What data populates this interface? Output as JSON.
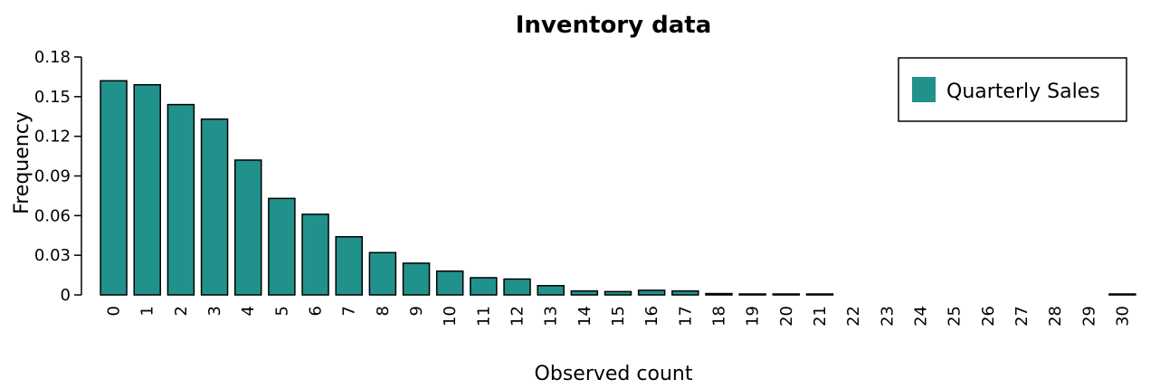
{
  "chart_data": {
    "type": "bar",
    "title": "Inventory data",
    "xlabel": "Observed count",
    "ylabel": "Frequency",
    "categories": [
      "0",
      "1",
      "2",
      "3",
      "4",
      "5",
      "6",
      "7",
      "8",
      "9",
      "10",
      "11",
      "12",
      "13",
      "14",
      "15",
      "16",
      "17",
      "18",
      "19",
      "20",
      "21",
      "22",
      "23",
      "24",
      "25",
      "26",
      "27",
      "28",
      "29",
      "30"
    ],
    "series": [
      {
        "name": "Quarterly Sales",
        "values": [
          0.162,
          0.159,
          0.144,
          0.133,
          0.102,
          0.073,
          0.061,
          0.044,
          0.032,
          0.024,
          0.018,
          0.013,
          0.012,
          0.007,
          0.003,
          0.0025,
          0.0035,
          0.003,
          0.001,
          0.0007,
          0.0007,
          0.0007,
          0,
          0,
          0,
          0,
          0,
          0,
          0,
          0,
          0.0007
        ]
      }
    ],
    "ylim": [
      0,
      0.18
    ],
    "yticks": [
      "0",
      "0.03",
      "0.06",
      "0.09",
      "0.12",
      "0.15",
      "0.18"
    ],
    "grid": false,
    "legend_position": "top-right",
    "bar_color": "#21918c"
  }
}
